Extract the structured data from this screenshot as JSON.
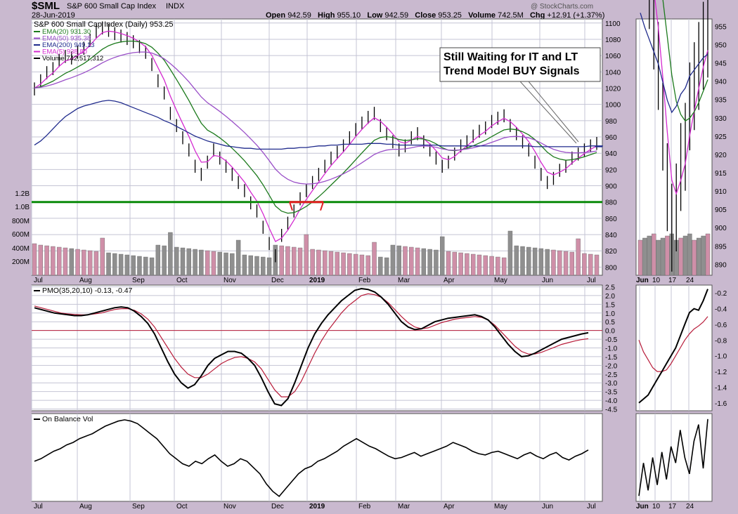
{
  "header": {
    "symbol": "$SML",
    "name": "S&P 600 Small Cap Index",
    "exchange": "INDX",
    "date": "28-Jun-2019",
    "open_label": "Open",
    "open": "942.59",
    "high_label": "High",
    "high": "955.10",
    "low_label": "Low",
    "low": "942.59",
    "close_label": "Close",
    "close": "953.25",
    "volume_label": "Volume",
    "volume": "742.5M",
    "chg_label": "Chg",
    "chg": "+12.91 (+1.37%)",
    "watermark": "@ StockCharts.com"
  },
  "colors": {
    "bg": "#c9b9cf",
    "panel": "#ffffff",
    "grid": "#c4c4d4",
    "price": "#000000",
    "ema20": "#1c7a1c",
    "ema50": "#9a4fc8",
    "ema200": "#1f2a8c",
    "ema5": "#d42ad0",
    "support": "#0a8a0a",
    "support_red": "#e02020",
    "pmo_signal": "#b81c3a",
    "vol_up": "#cf8fa8",
    "vol_down": "#8f8f8f"
  },
  "chart_data": [
    {
      "type": "line",
      "title": "S&P 600 Small Cap Index (Daily) 953.25",
      "months": [
        "Jul",
        "Aug",
        "Sep",
        "Oct",
        "Nov",
        "Dec",
        "2019",
        "Feb",
        "Mar",
        "Apr",
        "May",
        "Jun",
        "Jul"
      ],
      "ylim": [
        790,
        1105
      ],
      "yticks": [
        800,
        820,
        840,
        860,
        880,
        900,
        920,
        940,
        960,
        980,
        1000,
        1020,
        1040,
        1060,
        1080,
        1100
      ],
      "vol_ticks": [
        "1.2B",
        "1.0B",
        "800M",
        "600M",
        "400M",
        "200M"
      ],
      "legend": [
        {
          "name": "EMA(20) 931.30",
          "color": "#1c7a1c"
        },
        {
          "name": "EMA(50) 935.38",
          "color": "#9a4fc8"
        },
        {
          "name": "EMA(200) 949.13",
          "color": "#1f2a8c"
        },
        {
          "name": "EMA(5) 938.80",
          "color": "#d42ad0"
        },
        {
          "name": "Volume 742,517,312",
          "color": "#000000"
        }
      ],
      "close_series": [
        1020,
        1030,
        1040,
        1045,
        1055,
        1060,
        1058,
        1065,
        1070,
        1080,
        1090,
        1095,
        1092,
        1088,
        1085,
        1082,
        1078,
        1072,
        1065,
        1050,
        1030,
        1015,
        990,
        975,
        960,
        945,
        925,
        915,
        930,
        945,
        935,
        925,
        915,
        905,
        895,
        880,
        870,
        850,
        830,
        815,
        840,
        855,
        870,
        885,
        895,
        905,
        915,
        925,
        935,
        942,
        950,
        960,
        970,
        978,
        985,
        990,
        975,
        965,
        955,
        945,
        950,
        960,
        965,
        955,
        945,
        935,
        925,
        930,
        940,
        950,
        955,
        962,
        968,
        972,
        980,
        984,
        987,
        975,
        965,
        955,
        945,
        930,
        915,
        905,
        910,
        920,
        925,
        935,
        940,
        945,
        950,
        953
      ],
      "ema200_series": [
        950,
        955,
        962,
        970,
        978,
        985,
        990,
        995,
        998,
        1000,
        1002,
        1004,
        1005,
        1004,
        1002,
        999,
        996,
        993,
        990,
        987,
        984,
        980,
        977,
        973,
        969,
        965,
        961,
        958,
        955,
        953,
        951,
        949,
        948,
        947,
        946,
        946,
        945,
        945,
        945,
        945,
        945,
        946,
        946,
        947,
        947,
        948,
        949,
        949,
        950,
        950,
        951,
        951,
        951,
        951,
        952,
        952,
        952,
        951,
        951,
        950,
        950,
        950,
        950,
        950,
        950,
        950,
        949,
        949,
        949,
        949,
        949,
        949,
        949,
        949,
        949,
        949,
        949,
        949,
        949,
        949,
        949,
        948,
        948,
        948,
        948,
        948,
        948,
        948,
        948,
        948,
        949,
        949,
        949
      ],
      "support_level": 880,
      "annotation": [
        "Still Waiting for IT and LT",
        "Trend Model BUY Signals"
      ],
      "inset_xticks": [
        "Jun",
        "10",
        "17",
        "24"
      ],
      "inset_yticks": [
        890,
        895,
        900,
        905,
        910,
        915,
        920,
        925,
        930,
        935,
        940,
        945,
        950,
        955
      ]
    },
    {
      "type": "line",
      "title": "PMO(35,20,10) -0.13, -0.47",
      "pmo_val": "-0.13",
      "pmo_sig": "-0.47",
      "ylim": [
        -4.6,
        2.6
      ],
      "yticks": [
        "2.5",
        "2.0",
        "1.5",
        "1.0",
        "0.5",
        "0.0",
        "-0.5",
        "-1.0",
        "-1.5",
        "-2.0",
        "-2.5",
        "-3.0",
        "-3.5",
        "-4.0",
        "-4.5"
      ],
      "pmo_series": [
        1.3,
        1.2,
        1.1,
        1.0,
        0.95,
        0.9,
        0.85,
        0.85,
        0.9,
        1.0,
        1.1,
        1.2,
        1.3,
        1.35,
        1.3,
        1.1,
        0.8,
        0.4,
        -0.2,
        -1.0,
        -1.8,
        -2.5,
        -3.0,
        -3.3,
        -3.1,
        -2.6,
        -2.0,
        -1.6,
        -1.4,
        -1.2,
        -1.2,
        -1.3,
        -1.6,
        -2.0,
        -2.7,
        -3.5,
        -4.2,
        -4.3,
        -3.9,
        -3.0,
        -2.0,
        -1.0,
        -0.2,
        0.4,
        0.9,
        1.3,
        1.7,
        2.0,
        2.3,
        2.4,
        2.35,
        2.2,
        1.9,
        1.5,
        1.0,
        0.5,
        0.2,
        0.05,
        0.1,
        0.3,
        0.5,
        0.6,
        0.7,
        0.75,
        0.8,
        0.85,
        0.9,
        0.8,
        0.6,
        0.2,
        -0.3,
        -0.8,
        -1.2,
        -1.5,
        -1.45,
        -1.3,
        -1.1,
        -0.9,
        -0.7,
        -0.5,
        -0.4,
        -0.3,
        -0.2,
        -0.13
      ],
      "signal_series": [
        1.4,
        1.3,
        1.2,
        1.1,
        1.0,
        0.95,
        0.92,
        0.9,
        0.9,
        0.95,
        1.0,
        1.1,
        1.2,
        1.25,
        1.25,
        1.15,
        0.95,
        0.65,
        0.2,
        -0.4,
        -1.0,
        -1.6,
        -2.1,
        -2.5,
        -2.7,
        -2.7,
        -2.5,
        -2.2,
        -1.9,
        -1.7,
        -1.55,
        -1.5,
        -1.6,
        -1.8,
        -2.2,
        -2.8,
        -3.4,
        -3.8,
        -3.8,
        -3.5,
        -2.9,
        -2.1,
        -1.3,
        -0.6,
        0.0,
        0.5,
        1.0,
        1.4,
        1.7,
        2.0,
        2.1,
        2.05,
        1.9,
        1.6,
        1.2,
        0.8,
        0.45,
        0.2,
        0.1,
        0.15,
        0.3,
        0.45,
        0.55,
        0.65,
        0.7,
        0.75,
        0.8,
        0.75,
        0.6,
        0.3,
        -0.1,
        -0.5,
        -0.9,
        -1.2,
        -1.35,
        -1.35,
        -1.25,
        -1.1,
        -0.95,
        -0.8,
        -0.7,
        -0.6,
        -0.52,
        -0.47
      ],
      "inset_yticks": [
        "-0.2",
        "-0.4",
        "-0.6",
        "-0.8",
        "-1.0",
        "-1.2",
        "-1.4",
        "-1.6"
      ]
    },
    {
      "type": "line",
      "title": "On Balance Vol",
      "obv_series": [
        40,
        42,
        45,
        48,
        50,
        53,
        55,
        58,
        60,
        62,
        65,
        68,
        70,
        72,
        73,
        72,
        70,
        66,
        62,
        58,
        52,
        46,
        42,
        38,
        36,
        40,
        38,
        42,
        45,
        40,
        36,
        38,
        42,
        40,
        35,
        30,
        22,
        16,
        12,
        18,
        24,
        30,
        34,
        36,
        40,
        42,
        45,
        48,
        52,
        55,
        58,
        55,
        52,
        50,
        47,
        44,
        42,
        43,
        45,
        47,
        44,
        46,
        48,
        50,
        52,
        55,
        53,
        51,
        48,
        46,
        45,
        47,
        48,
        46,
        44,
        42,
        45,
        47,
        44,
        42,
        45,
        47,
        43,
        41,
        44,
        46,
        49
      ],
      "xticks": [
        "Jul",
        "Aug",
        "Sep",
        "Oct",
        "Nov",
        "Dec",
        "2019",
        "Feb",
        "Mar",
        "Apr",
        "May",
        "Jun",
        "Jul"
      ],
      "inset_xticks": [
        "Jun",
        "10",
        "17",
        "24"
      ]
    }
  ]
}
